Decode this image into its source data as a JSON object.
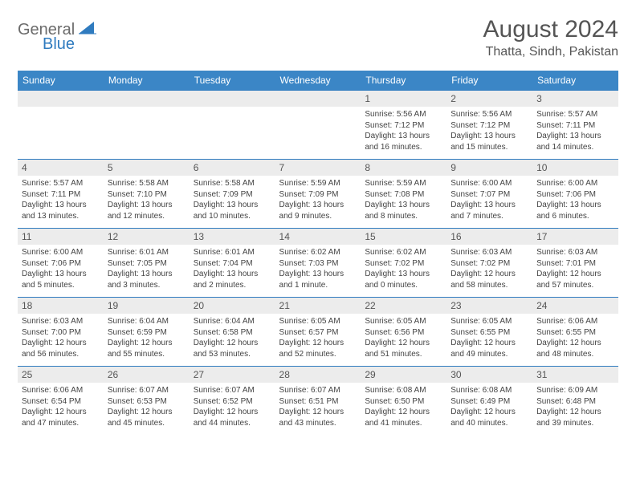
{
  "brand": {
    "part1": "General",
    "part2": "Blue"
  },
  "title": "August 2024",
  "location": "Thatta, Sindh, Pakistan",
  "colors": {
    "header_bg": "#3b86c6",
    "header_text": "#ffffff",
    "daynum_bg": "#ececec",
    "border": "#2f7bbf",
    "logo_accent": "#2f7bbf",
    "logo_gray": "#6b6b6b"
  },
  "weekdays": [
    "Sunday",
    "Monday",
    "Tuesday",
    "Wednesday",
    "Thursday",
    "Friday",
    "Saturday"
  ],
  "layout": {
    "columns": 7,
    "rows": 5,
    "first_weekday_index": 4,
    "days_in_month": 31
  },
  "days": [
    {
      "n": 1,
      "sunrise": "5:56 AM",
      "sunset": "7:12 PM",
      "daylight": "13 hours and 16 minutes."
    },
    {
      "n": 2,
      "sunrise": "5:56 AM",
      "sunset": "7:12 PM",
      "daylight": "13 hours and 15 minutes."
    },
    {
      "n": 3,
      "sunrise": "5:57 AM",
      "sunset": "7:11 PM",
      "daylight": "13 hours and 14 minutes."
    },
    {
      "n": 4,
      "sunrise": "5:57 AM",
      "sunset": "7:11 PM",
      "daylight": "13 hours and 13 minutes."
    },
    {
      "n": 5,
      "sunrise": "5:58 AM",
      "sunset": "7:10 PM",
      "daylight": "13 hours and 12 minutes."
    },
    {
      "n": 6,
      "sunrise": "5:58 AM",
      "sunset": "7:09 PM",
      "daylight": "13 hours and 10 minutes."
    },
    {
      "n": 7,
      "sunrise": "5:59 AM",
      "sunset": "7:09 PM",
      "daylight": "13 hours and 9 minutes."
    },
    {
      "n": 8,
      "sunrise": "5:59 AM",
      "sunset": "7:08 PM",
      "daylight": "13 hours and 8 minutes."
    },
    {
      "n": 9,
      "sunrise": "6:00 AM",
      "sunset": "7:07 PM",
      "daylight": "13 hours and 7 minutes."
    },
    {
      "n": 10,
      "sunrise": "6:00 AM",
      "sunset": "7:06 PM",
      "daylight": "13 hours and 6 minutes."
    },
    {
      "n": 11,
      "sunrise": "6:00 AM",
      "sunset": "7:06 PM",
      "daylight": "13 hours and 5 minutes."
    },
    {
      "n": 12,
      "sunrise": "6:01 AM",
      "sunset": "7:05 PM",
      "daylight": "13 hours and 3 minutes."
    },
    {
      "n": 13,
      "sunrise": "6:01 AM",
      "sunset": "7:04 PM",
      "daylight": "13 hours and 2 minutes."
    },
    {
      "n": 14,
      "sunrise": "6:02 AM",
      "sunset": "7:03 PM",
      "daylight": "13 hours and 1 minute."
    },
    {
      "n": 15,
      "sunrise": "6:02 AM",
      "sunset": "7:02 PM",
      "daylight": "13 hours and 0 minutes."
    },
    {
      "n": 16,
      "sunrise": "6:03 AM",
      "sunset": "7:02 PM",
      "daylight": "12 hours and 58 minutes."
    },
    {
      "n": 17,
      "sunrise": "6:03 AM",
      "sunset": "7:01 PM",
      "daylight": "12 hours and 57 minutes."
    },
    {
      "n": 18,
      "sunrise": "6:03 AM",
      "sunset": "7:00 PM",
      "daylight": "12 hours and 56 minutes."
    },
    {
      "n": 19,
      "sunrise": "6:04 AM",
      "sunset": "6:59 PM",
      "daylight": "12 hours and 55 minutes."
    },
    {
      "n": 20,
      "sunrise": "6:04 AM",
      "sunset": "6:58 PM",
      "daylight": "12 hours and 53 minutes."
    },
    {
      "n": 21,
      "sunrise": "6:05 AM",
      "sunset": "6:57 PM",
      "daylight": "12 hours and 52 minutes."
    },
    {
      "n": 22,
      "sunrise": "6:05 AM",
      "sunset": "6:56 PM",
      "daylight": "12 hours and 51 minutes."
    },
    {
      "n": 23,
      "sunrise": "6:05 AM",
      "sunset": "6:55 PM",
      "daylight": "12 hours and 49 minutes."
    },
    {
      "n": 24,
      "sunrise": "6:06 AM",
      "sunset": "6:55 PM",
      "daylight": "12 hours and 48 minutes."
    },
    {
      "n": 25,
      "sunrise": "6:06 AM",
      "sunset": "6:54 PM",
      "daylight": "12 hours and 47 minutes."
    },
    {
      "n": 26,
      "sunrise": "6:07 AM",
      "sunset": "6:53 PM",
      "daylight": "12 hours and 45 minutes."
    },
    {
      "n": 27,
      "sunrise": "6:07 AM",
      "sunset": "6:52 PM",
      "daylight": "12 hours and 44 minutes."
    },
    {
      "n": 28,
      "sunrise": "6:07 AM",
      "sunset": "6:51 PM",
      "daylight": "12 hours and 43 minutes."
    },
    {
      "n": 29,
      "sunrise": "6:08 AM",
      "sunset": "6:50 PM",
      "daylight": "12 hours and 41 minutes."
    },
    {
      "n": 30,
      "sunrise": "6:08 AM",
      "sunset": "6:49 PM",
      "daylight": "12 hours and 40 minutes."
    },
    {
      "n": 31,
      "sunrise": "6:09 AM",
      "sunset": "6:48 PM",
      "daylight": "12 hours and 39 minutes."
    }
  ],
  "labels": {
    "sunrise": "Sunrise:",
    "sunset": "Sunset:",
    "daylight": "Daylight:"
  }
}
